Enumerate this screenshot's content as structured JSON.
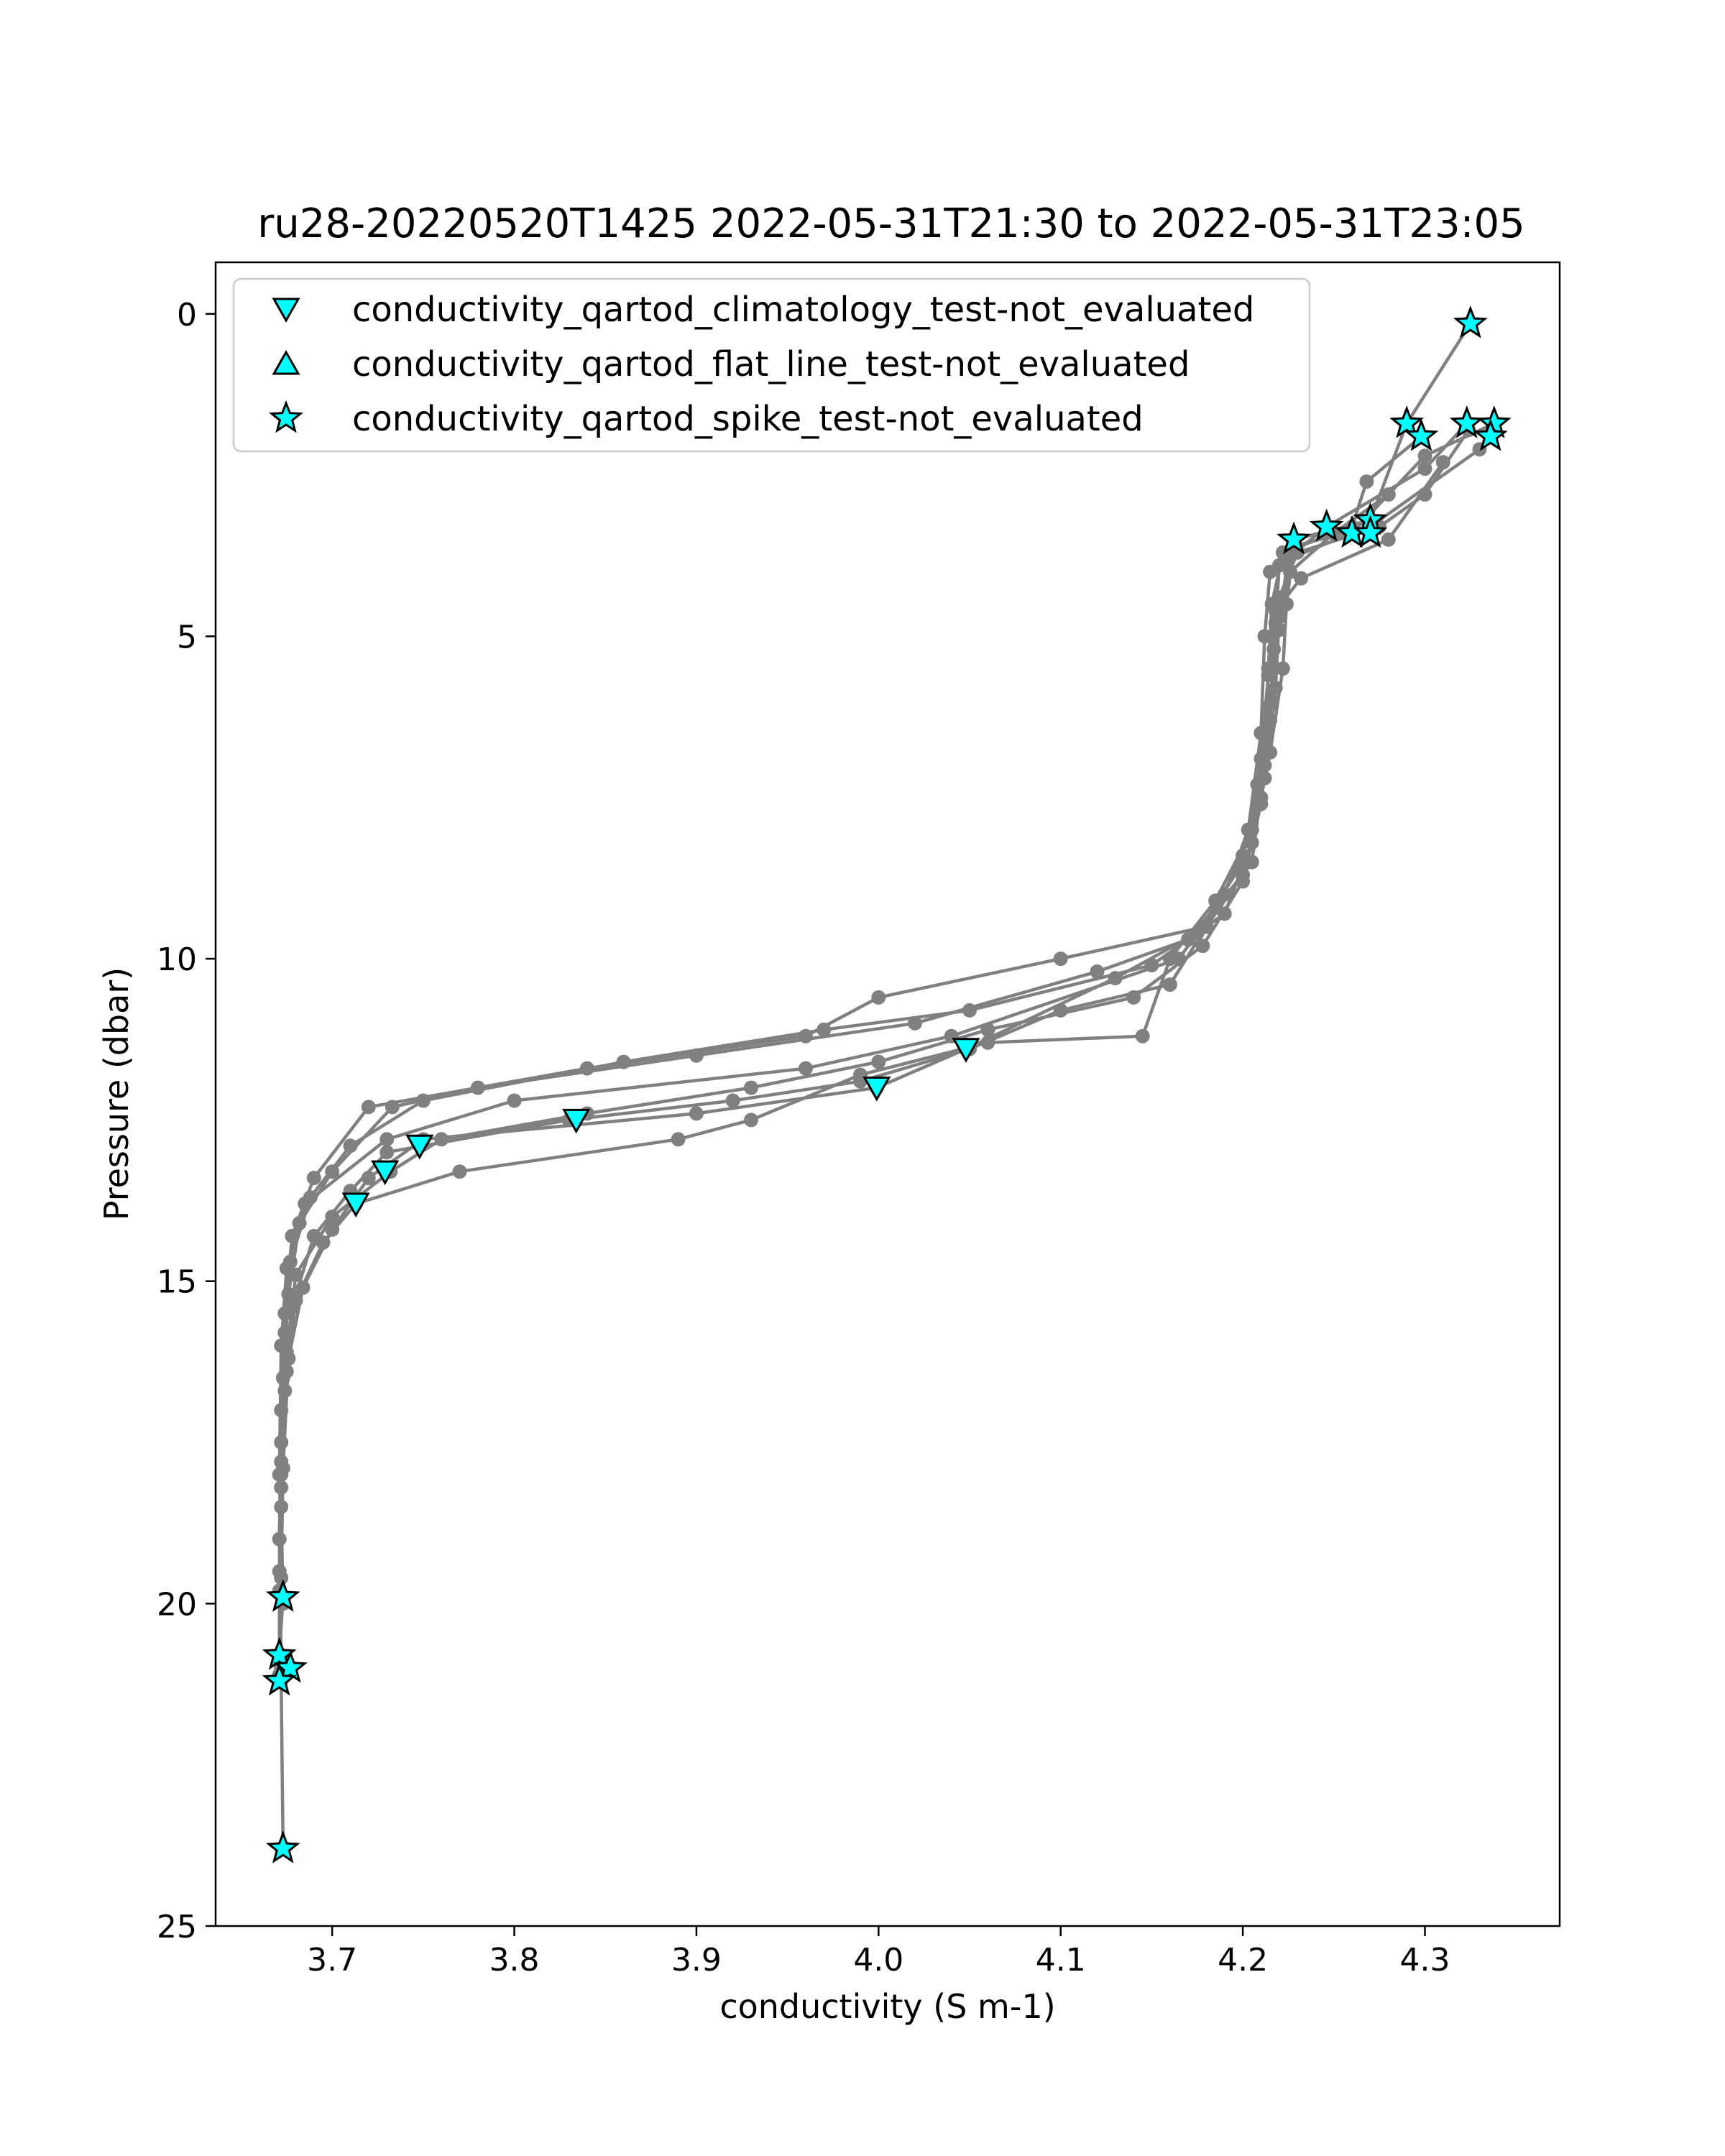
{
  "chart_data": {
    "type": "scatter",
    "title": "ru28-20220520T1425 2022-05-31T21:30 to 2022-05-31T23:05",
    "xlabel": "conductivity (S m-1)",
    "ylabel": "Pressure (dbar)",
    "xlim": [
      3.636,
      4.374
    ],
    "ylim": [
      25,
      -0.8
    ],
    "y_inverted": true,
    "grid": false,
    "legend_position": "upper-left",
    "x_ticks": [
      "3.7",
      "3.8",
      "3.9",
      "4.0",
      "4.1",
      "4.2",
      "4.3"
    ],
    "y_ticks": [
      "0",
      "5",
      "10",
      "15",
      "20",
      "25"
    ],
    "colors": {
      "profile_line": "#808080",
      "flag_marker_fill": "#00ffff",
      "flag_marker_edge": "#000000"
    },
    "profiles": [
      [
        [
          4.325,
          0.15
        ],
        [
          4.29,
          1.7
        ],
        [
          4.27,
          3.2
        ],
        [
          4.228,
          3.5
        ],
        [
          4.215,
          4.0
        ],
        [
          4.212,
          5.0
        ],
        [
          4.21,
          6.5
        ],
        [
          4.203,
          8.0
        ],
        [
          4.19,
          9.0
        ],
        [
          4.165,
          10.0
        ],
        [
          4.04,
          11.2
        ],
        [
          3.96,
          11.7
        ],
        [
          3.8,
          12.2
        ],
        [
          3.73,
          12.8
        ],
        [
          3.685,
          13.8
        ],
        [
          3.675,
          14.8
        ],
        [
          3.672,
          16.0
        ],
        [
          3.671,
          18.0
        ],
        [
          3.673,
          19.9
        ],
        [
          3.671,
          20.8
        ],
        [
          3.672,
          21.2
        ],
        [
          3.673,
          23.8
        ]
      ],
      [
        [
          4.298,
          1.9
        ],
        [
          4.268,
          2.6
        ],
        [
          4.26,
          3.3
        ],
        [
          4.222,
          3.7
        ],
        [
          4.216,
          4.5
        ],
        [
          4.214,
          5.5
        ],
        [
          4.212,
          7.0
        ],
        [
          4.205,
          8.5
        ],
        [
          4.18,
          9.5
        ],
        [
          4.1,
          10.0
        ],
        [
          4.0,
          10.6
        ],
        [
          3.96,
          11.2
        ],
        [
          3.84,
          11.7
        ],
        [
          3.72,
          12.3
        ],
        [
          3.69,
          13.4
        ],
        [
          3.678,
          14.3
        ],
        [
          3.674,
          15.5
        ],
        [
          3.672,
          17.0
        ],
        [
          3.671,
          19.0
        ],
        [
          3.672,
          21.0
        ]
      ],
      [
        [
          4.323,
          1.7
        ],
        [
          4.3,
          2.4
        ],
        [
          4.246,
          3.3
        ],
        [
          4.22,
          3.9
        ],
        [
          4.218,
          4.8
        ],
        [
          4.216,
          6.0
        ],
        [
          4.21,
          7.5
        ],
        [
          4.2,
          8.7
        ],
        [
          4.17,
          9.7
        ],
        [
          4.12,
          10.2
        ],
        [
          4.02,
          11.0
        ],
        [
          3.9,
          11.5
        ],
        [
          3.78,
          12.0
        ],
        [
          3.733,
          12.3
        ],
        [
          3.7,
          13.3
        ],
        [
          3.682,
          14.1
        ],
        [
          3.676,
          15.2
        ],
        [
          3.673,
          16.5
        ],
        [
          3.672,
          18.5
        ],
        [
          3.673,
          20.0
        ]
      ],
      [
        [
          4.336,
          1.9
        ],
        [
          4.33,
          2.1
        ],
        [
          4.27,
          3.3
        ],
        [
          4.228,
          3.6
        ],
        [
          4.224,
          4.5
        ],
        [
          4.222,
          5.5
        ],
        [
          4.215,
          6.8
        ],
        [
          4.205,
          8.2
        ],
        [
          4.19,
          9.3
        ],
        [
          4.15,
          10.1
        ],
        [
          4.05,
          10.8
        ],
        [
          3.97,
          11.1
        ],
        [
          3.86,
          11.6
        ],
        [
          3.75,
          12.2
        ],
        [
          3.71,
          12.9
        ],
        [
          3.688,
          13.7
        ],
        [
          3.677,
          14.7
        ],
        [
          3.674,
          15.8
        ],
        [
          3.672,
          17.5
        ],
        [
          3.671,
          19.5
        ],
        [
          3.671,
          21.1
        ]
      ],
      [
        [
          4.338,
          1.7
        ],
        [
          4.3,
          2.2
        ],
        [
          4.26,
          3.4
        ],
        [
          4.225,
          3.8
        ],
        [
          4.22,
          4.7
        ],
        [
          4.218,
          5.8
        ],
        [
          4.212,
          7.2
        ],
        [
          4.2,
          8.4
        ],
        [
          4.18,
          9.5
        ],
        [
          4.16,
          10.4
        ],
        [
          4.1,
          10.8
        ],
        [
          4.05,
          11.4
        ],
        [
          3.99,
          11.9
        ],
        [
          3.92,
          12.2
        ],
        [
          3.83,
          12.5
        ],
        [
          3.73,
          13.0
        ],
        [
          3.71,
          13.6
        ],
        [
          3.69,
          14.3
        ],
        [
          3.678,
          15.4
        ],
        [
          3.674,
          16.7
        ],
        [
          3.672,
          18.2
        ]
      ],
      [
        [
          4.324,
          1.8
        ],
        [
          4.3,
          2.8
        ],
        [
          4.275,
          3.3
        ],
        [
          4.23,
          3.7
        ],
        [
          4.22,
          4.4
        ],
        [
          4.217,
          5.2
        ],
        [
          4.215,
          6.3
        ],
        [
          4.21,
          7.6
        ],
        [
          4.2,
          8.8
        ],
        [
          4.178,
          9.8
        ],
        [
          4.14,
          10.6
        ],
        [
          4.06,
          11.1
        ],
        [
          4.0,
          11.6
        ],
        [
          3.93,
          12.0
        ],
        [
          3.84,
          12.4
        ],
        [
          3.76,
          12.8
        ],
        [
          3.732,
          13.3
        ],
        [
          3.7,
          14.0
        ],
        [
          3.68,
          14.9
        ],
        [
          3.675,
          16.1
        ],
        [
          3.672,
          17.8
        ],
        [
          3.671,
          19.8
        ]
      ],
      [
        [
          4.31,
          2.3
        ],
        [
          4.28,
          3.5
        ],
        [
          4.232,
          4.1
        ],
        [
          4.218,
          4.6
        ],
        [
          4.214,
          5.6
        ],
        [
          4.21,
          6.9
        ],
        [
          4.205,
          8.0
        ],
        [
          4.185,
          9.1
        ],
        [
          4.16,
          10.0
        ],
        [
          4.145,
          11.2
        ],
        [
          4.06,
          11.3
        ],
        [
          3.99,
          11.8
        ],
        [
          3.93,
          12.5
        ],
        [
          3.89,
          12.8
        ],
        [
          3.77,
          13.3
        ],
        [
          3.713,
          13.8
        ],
        [
          3.695,
          14.4
        ],
        [
          3.68,
          15.3
        ],
        [
          3.675,
          16.4
        ],
        [
          3.672,
          18.0
        ]
      ],
      [
        [
          4.28,
          2.8
        ],
        [
          4.25,
          3.4
        ],
        [
          4.226,
          4.0
        ],
        [
          4.22,
          4.9
        ],
        [
          4.214,
          6.1
        ],
        [
          4.208,
          7.3
        ],
        [
          4.198,
          8.6
        ],
        [
          4.175,
          9.6
        ],
        [
          4.13,
          10.3
        ],
        [
          4.048,
          11.4
        ],
        [
          3.999,
          12.0
        ],
        [
          3.9,
          12.4
        ],
        [
          3.75,
          12.8
        ],
        [
          3.72,
          13.4
        ],
        [
          3.7,
          14.2
        ],
        [
          3.684,
          15.1
        ],
        [
          3.676,
          16.2
        ],
        [
          3.673,
          17.9
        ],
        [
          3.672,
          19.6
        ]
      ]
    ],
    "flags": [
      {
        "name": "conductivity_qartod_climatology_test-not_evaluated",
        "marker": "triangle-down",
        "points": [
          [
            4.048,
            11.4
          ],
          [
            3.999,
            12.0
          ],
          [
            3.834,
            12.5
          ],
          [
            3.748,
            12.9
          ],
          [
            3.729,
            13.3
          ],
          [
            3.713,
            13.8
          ]
        ]
      },
      {
        "name": "conductivity_qartod_flat_line_test-not_evaluated",
        "marker": "triangle-up",
        "points": []
      },
      {
        "name": "conductivity_qartod_spike_test-not_evaluated",
        "marker": "star",
        "points": [
          [
            4.325,
            0.15
          ],
          [
            4.29,
            1.7
          ],
          [
            4.298,
            1.9
          ],
          [
            4.323,
            1.7
          ],
          [
            4.338,
            1.7
          ],
          [
            4.336,
            1.9
          ],
          [
            4.228,
            3.5
          ],
          [
            4.246,
            3.3
          ],
          [
            4.26,
            3.4
          ],
          [
            4.27,
            3.2
          ],
          [
            4.27,
            3.4
          ],
          [
            3.673,
            19.9
          ],
          [
            3.671,
            20.8
          ],
          [
            3.677,
            21.0
          ],
          [
            3.671,
            21.2
          ],
          [
            3.673,
            23.8
          ]
        ]
      }
    ]
  }
}
